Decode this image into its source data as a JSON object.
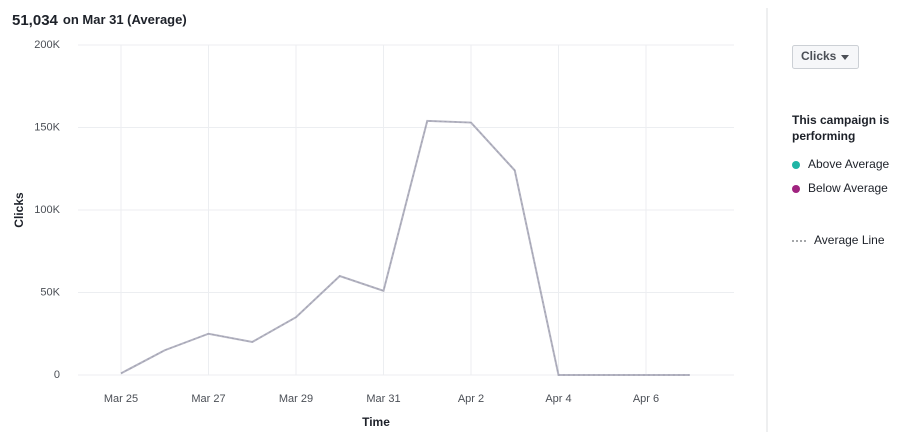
{
  "chart_data": {
    "type": "line",
    "headline": {
      "value": "51,034",
      "suffix": "on Mar 31 (Average)"
    },
    "x_label": "Time",
    "y_label": "Clicks",
    "categories": [
      "Mar 25",
      null,
      "Mar 27",
      null,
      "Mar 29",
      null,
      "Mar 31",
      null,
      "Apr 2",
      null,
      "Apr 4",
      null,
      "Apr 6",
      null
    ],
    "series": [
      {
        "name": "Average Line",
        "color": "#b4b4c2",
        "values": [
          1000,
          15000,
          25000,
          20000,
          35000,
          60000,
          51034,
          154000,
          153000,
          124000,
          0,
          0,
          0,
          0
        ]
      }
    ],
    "ylim": [
      0,
      200000
    ],
    "yticks": [
      0,
      {
        "value": 50000,
        "label": "50K"
      },
      {
        "value": 100000,
        "label": "100K"
      },
      {
        "value": 150000,
        "label": "150K"
      },
      {
        "value": 200000,
        "label": "200K"
      }
    ],
    "grid": true,
    "metric_selector": "Clicks",
    "legend_title": "This campaign is performing",
    "legend": [
      {
        "name": "Above Average",
        "color": "#1fb5a5"
      },
      {
        "name": "Below Average",
        "color": "#a0237f"
      }
    ]
  }
}
